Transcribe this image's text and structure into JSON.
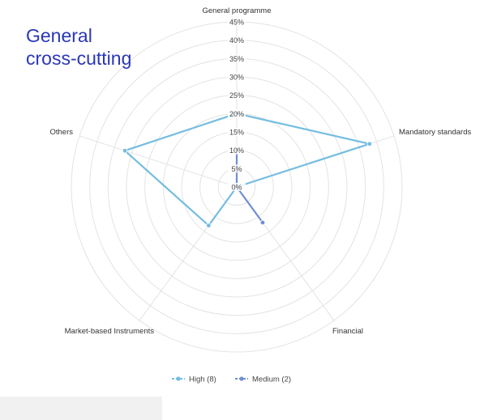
{
  "overlay_text": "General\ncross-cutting",
  "chart_data": {
    "type": "radar",
    "axes": [
      "General programme",
      "Mandatory standards",
      "Financial",
      "Market-based Instruments",
      "Others"
    ],
    "ticks": [
      "0%",
      "5%",
      "10%",
      "15%",
      "20%",
      "25%",
      "30%",
      "35%",
      "40%",
      "45%"
    ],
    "rmax": 45,
    "series": [
      {
        "name": "High (8)",
        "color": "#74bde0",
        "values": [
          20,
          38,
          0,
          13,
          32
        ]
      },
      {
        "name": "Medium (2)",
        "color": "#6f8fd4",
        "values": [
          10,
          0,
          12,
          0,
          0
        ]
      }
    ],
    "legend_position": "bottom"
  }
}
